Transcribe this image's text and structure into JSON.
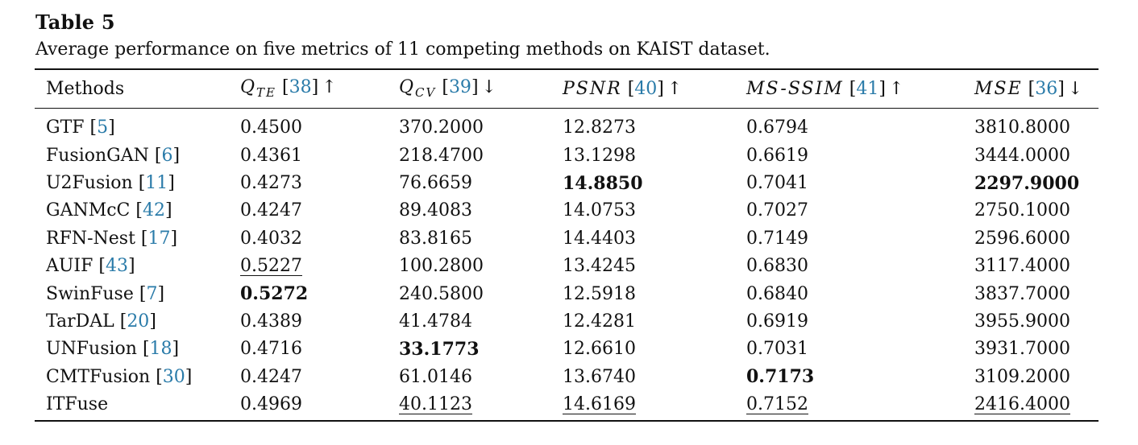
{
  "table_label": "Table 5",
  "caption": "Average performance on five metrics of 11 competing methods on KAIST dataset.",
  "header": {
    "methods": "Methods",
    "metrics": [
      {
        "main": "Q",
        "sub": "TE",
        "ref": "38",
        "arrow": "↑"
      },
      {
        "main": "Q",
        "sub": "CV",
        "ref": "39",
        "arrow": "↓"
      },
      {
        "main": "PSNR",
        "sub": "",
        "ref": "40",
        "arrow": "↑"
      },
      {
        "main": "MS-SSIM",
        "sub": "",
        "ref": "41",
        "arrow": "↑"
      },
      {
        "main": "MSE",
        "sub": "",
        "ref": "36",
        "arrow": "↓"
      }
    ]
  },
  "rows": [
    {
      "method": "GTF",
      "ref": "5",
      "values": [
        "0.4500",
        "370.2000",
        "12.8273",
        "0.6794",
        "3810.8000"
      ],
      "style": [
        "",
        "",
        "",
        "",
        ""
      ]
    },
    {
      "method": "FusionGAN",
      "ref": "6",
      "values": [
        "0.4361",
        "218.4700",
        "13.1298",
        "0.6619",
        "3444.0000"
      ],
      "style": [
        "",
        "",
        "",
        "",
        ""
      ]
    },
    {
      "method": "U2Fusion",
      "ref": "11",
      "values": [
        "0.4273",
        "76.6659",
        "14.8850",
        "0.7041",
        "2297.9000"
      ],
      "style": [
        "",
        "",
        "bold",
        "",
        "bold"
      ]
    },
    {
      "method": "GANMcC",
      "ref": "42",
      "values": [
        "0.4247",
        "89.4083",
        "14.0753",
        "0.7027",
        "2750.1000"
      ],
      "style": [
        "",
        "",
        "",
        "",
        ""
      ]
    },
    {
      "method": "RFN-Nest",
      "ref": "17",
      "values": [
        "0.4032",
        "83.8165",
        "14.4403",
        "0.7149",
        "2596.6000"
      ],
      "style": [
        "",
        "",
        "",
        "",
        ""
      ]
    },
    {
      "method": "AUIF",
      "ref": "43",
      "values": [
        "0.5227",
        "100.2800",
        "13.4245",
        "0.6830",
        "3117.4000"
      ],
      "style": [
        "ul",
        "",
        "",
        "",
        ""
      ]
    },
    {
      "method": "SwinFuse",
      "ref": "7",
      "values": [
        "0.5272",
        "240.5800",
        "12.5918",
        "0.6840",
        "3837.7000"
      ],
      "style": [
        "bold",
        "",
        "",
        "",
        ""
      ]
    },
    {
      "method": "TarDAL",
      "ref": "20",
      "values": [
        "0.4389",
        "41.4784",
        "12.4281",
        "0.6919",
        "3955.9000"
      ],
      "style": [
        "",
        "",
        "",
        "",
        ""
      ]
    },
    {
      "method": "UNFusion",
      "ref": "18",
      "values": [
        "0.4716",
        "33.1773",
        "12.6610",
        "0.7031",
        "3931.7000"
      ],
      "style": [
        "",
        "bold",
        "",
        "",
        ""
      ]
    },
    {
      "method": "CMTFusion",
      "ref": "30",
      "values": [
        "0.4247",
        "61.0146",
        "13.6740",
        "0.7173",
        "3109.2000"
      ],
      "style": [
        "",
        "",
        "",
        "bold",
        ""
      ]
    },
    {
      "method": "ITFuse",
      "ref": "",
      "values": [
        "0.4969",
        "40.1123",
        "14.6169",
        "0.7152",
        "2416.4000"
      ],
      "style": [
        "",
        "ul",
        "ul",
        "ul",
        "ul"
      ]
    }
  ]
}
